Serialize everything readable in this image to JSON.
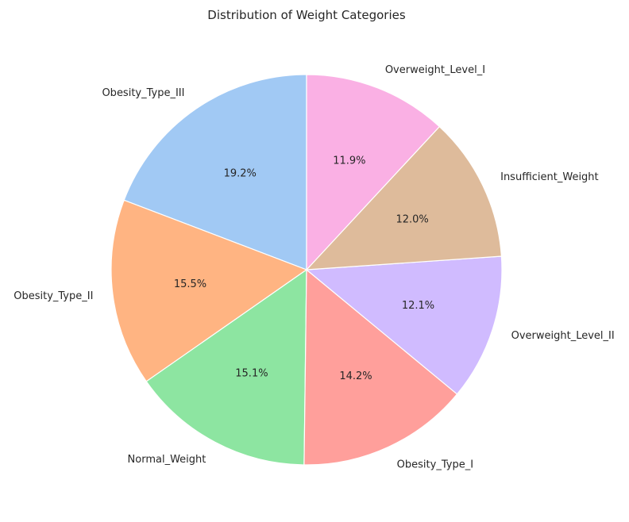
{
  "chart_data": {
    "type": "pie",
    "title": "Distribution of Weight Categories",
    "start_angle_deg": 90,
    "direction": "counterclockwise",
    "slices": [
      {
        "label": "Obesity_Type_III",
        "pct_text": "19.2%",
        "value": 19.2,
        "color": "#a1c9f4"
      },
      {
        "label": "Obesity_Type_II",
        "pct_text": "15.5%",
        "value": 15.5,
        "color": "#ffb482"
      },
      {
        "label": "Normal_Weight",
        "pct_text": "15.1%",
        "value": 15.1,
        "color": "#8de5a1"
      },
      {
        "label": "Obesity_Type_I",
        "pct_text": "14.2%",
        "value": 14.2,
        "color": "#ff9f9b"
      },
      {
        "label": "Overweight_Level_II",
        "pct_text": "12.1%",
        "value": 12.1,
        "color": "#d0bbff"
      },
      {
        "label": "Insufficient_Weight",
        "pct_text": "12.0%",
        "value": 12.0,
        "color": "#debb9b"
      },
      {
        "label": "Overweight_Level_I",
        "pct_text": "11.9%",
        "value": 11.9,
        "color": "#fab0e4"
      }
    ]
  }
}
